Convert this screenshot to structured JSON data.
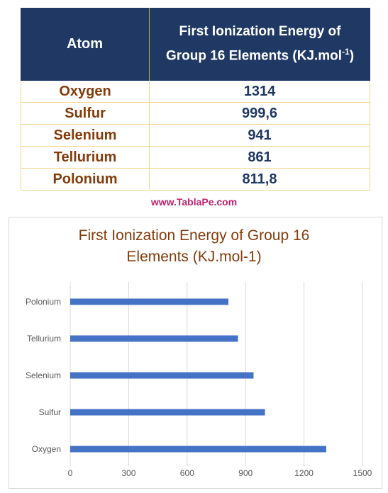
{
  "table": {
    "headers": {
      "atom": "Atom",
      "energy_line1": "First Ionization Energy of",
      "energy_line2": "Group 16 Elements (KJ.mol",
      "energy_sup": "-1",
      "energy_end": ")"
    },
    "rows": [
      {
        "atom": "Oxygen",
        "value": "1314"
      },
      {
        "atom": "Sulfur",
        "value": "999,6"
      },
      {
        "atom": "Selenium",
        "value": "941"
      },
      {
        "atom": "Tellurium",
        "value": "861"
      },
      {
        "atom": "Polonium",
        "value": "811,8"
      }
    ]
  },
  "website": "www.TablaPe.com",
  "chart_data": {
    "type": "bar",
    "orientation": "horizontal",
    "title_line1": "First Ionization Energy of Group 16",
    "title_line2": "Elements (KJ.mol-1)",
    "categories": [
      "Oxygen",
      "Sulfur",
      "Selenium",
      "Tellurium",
      "Polonium"
    ],
    "values": [
      1314,
      999.6,
      941,
      861,
      811.8
    ],
    "xlim": [
      0,
      1500
    ],
    "xticks": [
      "0",
      "300",
      "600",
      "900",
      "1200",
      "1500"
    ],
    "grid": true,
    "bar_color": "#4472c4"
  },
  "colors": {
    "header_bg": "#1f3864",
    "atom_text": "#843c0c",
    "value_text": "#1f3864",
    "website_text": "#c0226e"
  }
}
